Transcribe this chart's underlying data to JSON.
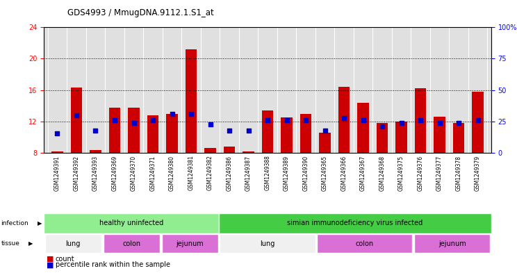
{
  "title": "GDS4993 / MmugDNA.9112.1.S1_at",
  "samples": [
    "GSM1249391",
    "GSM1249392",
    "GSM1249393",
    "GSM1249369",
    "GSM1249370",
    "GSM1249371",
    "GSM1249380",
    "GSM1249381",
    "GSM1249382",
    "GSM1249386",
    "GSM1249387",
    "GSM1249388",
    "GSM1249389",
    "GSM1249390",
    "GSM1249365",
    "GSM1249366",
    "GSM1249367",
    "GSM1249368",
    "GSM1249375",
    "GSM1249376",
    "GSM1249377",
    "GSM1249378",
    "GSM1249379"
  ],
  "bar_heights": [
    8.2,
    16.3,
    8.4,
    13.8,
    13.8,
    12.8,
    13.0,
    21.2,
    8.6,
    8.8,
    8.2,
    13.4,
    12.5,
    13.0,
    10.6,
    16.4,
    14.4,
    11.8,
    12.0,
    16.2,
    12.6,
    11.8,
    15.8
  ],
  "percentile_ranks": [
    10.5,
    12.8,
    10.8,
    12.2,
    11.8,
    12.2,
    13.0,
    13.0,
    11.6,
    10.8,
    10.8,
    12.2,
    12.2,
    12.2,
    10.8,
    12.4,
    12.2,
    11.4,
    11.8,
    12.2,
    11.8,
    11.8,
    12.2
  ],
  "y_min": 8,
  "y_max": 24,
  "y_ticks_left": [
    8,
    12,
    16,
    20,
    24
  ],
  "y_ticks_right_vals": [
    0,
    25,
    50,
    75,
    100
  ],
  "y_ticks_right_labels": [
    "0",
    "25",
    "50",
    "75",
    "100%"
  ],
  "bar_color": "#cc0000",
  "dot_color": "#0000cc",
  "bg_color": "#e0e0e0",
  "infection_healthy_color": "#90ee90",
  "infection_infected_color": "#44cc44",
  "lung_color": "#f0f0f0",
  "colon_color": "#da70d6",
  "jejunum_color": "#da70d6",
  "infection_split": 9,
  "tissue_groups": [
    {
      "label": "lung",
      "start": 0,
      "end": 3,
      "type": "lung"
    },
    {
      "label": "colon",
      "start": 3,
      "end": 6,
      "type": "colon"
    },
    {
      "label": "jejunum",
      "start": 6,
      "end": 9,
      "type": "jejunum"
    },
    {
      "label": "lung",
      "start": 9,
      "end": 14,
      "type": "lung"
    },
    {
      "label": "colon",
      "start": 14,
      "end": 19,
      "type": "colon"
    },
    {
      "label": "jejunum",
      "start": 19,
      "end": 23,
      "type": "jejunum"
    }
  ]
}
